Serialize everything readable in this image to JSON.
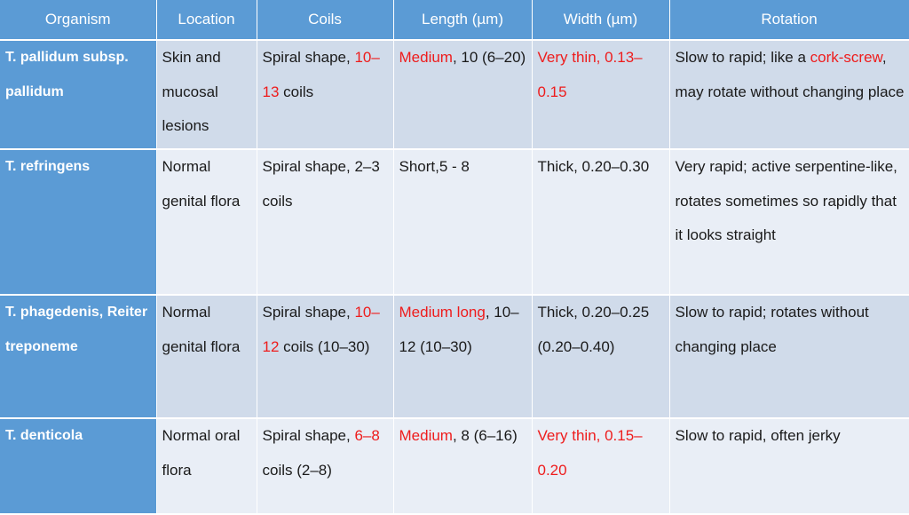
{
  "headers": [
    "Organism",
    "Location",
    "Coils",
    "Length (µm)",
    "Width (µm)",
    "Rotation"
  ],
  "rows": [
    {
      "organism": "T. pallidum subsp. pallidum",
      "location": "Skin and mucosal lesions",
      "coils": [
        "Spiral shape, ",
        "10–13",
        " coils"
      ],
      "length": [
        "Medium",
        ", 10 (6–20)"
      ],
      "width": [
        "Very thin, 0.13–0.15",
        ""
      ],
      "rotation": [
        "Slow to rapid; like a ",
        "cork-screw",
        ", may rotate without changing place"
      ]
    },
    {
      "organism": "T. refringens",
      "location": "Normal genital flora",
      "coils": [
        "Spiral shape, 2–3 coils",
        "",
        ""
      ],
      "length": [
        "",
        "Short,5 - 8"
      ],
      "width": [
        "",
        "Thick, 0.20–0.30"
      ],
      "rotation": [
        "Very rapid; active serpentine-like, rotates sometimes so rapidly that it looks straight",
        "",
        ""
      ]
    },
    {
      "organism": "T. phagedenis, Reiter treponeme",
      "location": "Normal genital flora",
      "coils": [
        "Spiral shape, ",
        "10–12",
        " coils (10–30)"
      ],
      "length": [
        "Medium long",
        ", 10–12 (10–30)"
      ],
      "width": [
        "",
        "Thick, 0.20–0.25 (0.20–0.40)"
      ],
      "rotation": [
        "Slow to rapid; rotates without changing place",
        "",
        ""
      ]
    },
    {
      "organism": "T. denticola",
      "location": "Normal oral flora",
      "coils": [
        "Spiral shape, ",
        "6–8",
        " coils (2–8)"
      ],
      "length": [
        "Medium",
        ", 8 (6–16)"
      ],
      "width": [
        "Very thin, 0.15–0.20",
        ""
      ],
      "rotation": [
        "Slow to rapid, often jerky",
        "",
        ""
      ]
    }
  ],
  "colors": {
    "header_bg": "#5b9bd5",
    "row_dark": "#d0dbea",
    "row_light": "#e9eef6",
    "highlight_red": "#ee1c1c"
  }
}
